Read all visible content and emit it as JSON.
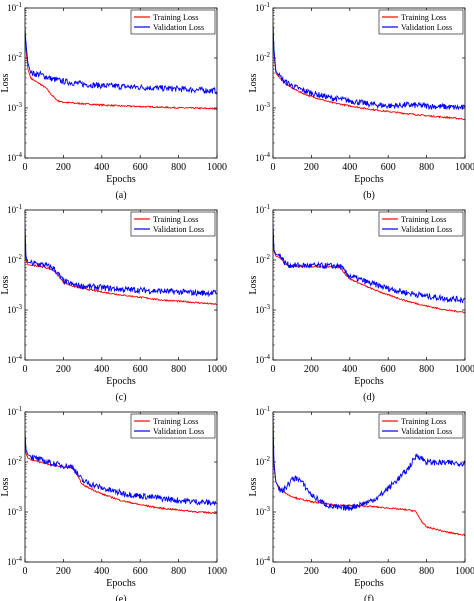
{
  "chart_data": [
    {
      "type": "line",
      "panel_label": "(a)",
      "xlabel": "Epochs",
      "ylabel": "Loss",
      "xlim": [
        0,
        1000
      ],
      "ylim": [
        0.0001,
        0.1
      ],
      "yscale": "log",
      "x_ticks": [
        "0",
        "200",
        "400",
        "600",
        "800",
        "1000"
      ],
      "y_ticks": [
        "10-4",
        "10-3",
        "10-2",
        "10-1"
      ],
      "legend": "top-right",
      "series": [
        {
          "name": "Training Loss",
          "color": "#ff0000",
          "x": [
            0,
            5,
            15,
            30,
            50,
            80,
            110,
            140,
            170,
            200,
            300,
            400,
            500,
            600,
            700,
            800,
            900,
            1000
          ],
          "y": [
            0.03,
            0.015,
            0.006,
            0.004,
            0.0035,
            0.003,
            0.0025,
            0.0018,
            0.0014,
            0.0013,
            0.00122,
            0.00115,
            0.0011,
            0.00107,
            0.00104,
            0.00101,
            0.00099,
            0.00097
          ]
        },
        {
          "name": "Validation Loss",
          "color": "#0000ff",
          "x": [
            0,
            5,
            15,
            30,
            50,
            80,
            110,
            140,
            170,
            200,
            300,
            400,
            500,
            600,
            700,
            800,
            900,
            1000
          ],
          "y": [
            0.04,
            0.02,
            0.008,
            0.005,
            0.0048,
            0.0047,
            0.0042,
            0.0038,
            0.0036,
            0.0034,
            0.003,
            0.0028,
            0.0027,
            0.0026,
            0.0025,
            0.0024,
            0.0023,
            0.0022
          ]
        }
      ]
    },
    {
      "type": "line",
      "panel_label": "(b)",
      "xlabel": "Epochs",
      "ylabel": "Loss",
      "xlim": [
        0,
        1000
      ],
      "ylim": [
        0.0001,
        0.1
      ],
      "yscale": "log",
      "x_ticks": [
        "0",
        "200",
        "400",
        "600",
        "800",
        "1000"
      ],
      "y_ticks": [
        "10-4",
        "10-3",
        "10-2",
        "10-1"
      ],
      "legend": "top-right",
      "series": [
        {
          "name": "Training Loss",
          "color": "#ff0000",
          "x": [
            0,
            5,
            15,
            30,
            60,
            100,
            150,
            200,
            300,
            400,
            500,
            600,
            700,
            800,
            900,
            1000
          ],
          "y": [
            0.03,
            0.012,
            0.005,
            0.0042,
            0.0032,
            0.0025,
            0.002,
            0.0017,
            0.0013,
            0.0011,
            0.00095,
            0.00085,
            0.00077,
            0.0007,
            0.00065,
            0.0006
          ]
        },
        {
          "name": "Validation Loss",
          "color": "#0000ff",
          "x": [
            0,
            5,
            15,
            30,
            60,
            100,
            150,
            200,
            300,
            400,
            500,
            600,
            700,
            800,
            900,
            1000
          ],
          "y": [
            0.05,
            0.015,
            0.0055,
            0.0045,
            0.0034,
            0.0028,
            0.0023,
            0.002,
            0.0016,
            0.0014,
            0.0012,
            0.0011,
            0.00115,
            0.0011,
            0.00105,
            0.001
          ]
        }
      ]
    },
    {
      "type": "line",
      "panel_label": "(c)",
      "xlabel": "Epochs",
      "ylabel": "Loss",
      "xlim": [
        0,
        1000
      ],
      "ylim": [
        0.0001,
        0.1
      ],
      "yscale": "log",
      "x_ticks": [
        "0",
        "200",
        "400",
        "600",
        "800",
        "1000"
      ],
      "y_ticks": [
        "10-4",
        "10-3",
        "10-2",
        "10-1"
      ],
      "legend": "top-right",
      "series": [
        {
          "name": "Training Loss",
          "color": "#ff0000",
          "x": [
            0,
            5,
            15,
            50,
            100,
            150,
            180,
            200,
            250,
            300,
            400,
            500,
            600,
            700,
            800,
            900,
            1000
          ],
          "y": [
            0.03,
            0.01,
            0.008,
            0.0078,
            0.0072,
            0.0062,
            0.0045,
            0.0036,
            0.003,
            0.0027,
            0.0023,
            0.002,
            0.0018,
            0.0016,
            0.0015,
            0.0014,
            0.0013
          ]
        },
        {
          "name": "Validation Loss",
          "color": "#0000ff",
          "x": [
            0,
            5,
            15,
            50,
            100,
            150,
            180,
            200,
            250,
            300,
            400,
            500,
            600,
            700,
            800,
            900,
            1000
          ],
          "y": [
            0.05,
            0.012,
            0.009,
            0.0085,
            0.008,
            0.0068,
            0.0048,
            0.0038,
            0.0032,
            0.003,
            0.0028,
            0.0026,
            0.0025,
            0.0024,
            0.0023,
            0.0022,
            0.0022
          ]
        }
      ]
    },
    {
      "type": "line",
      "panel_label": "(d)",
      "xlabel": "Epochs",
      "ylabel": "Loss",
      "xlim": [
        0,
        1000
      ],
      "ylim": [
        0.0001,
        0.1
      ],
      "yscale": "log",
      "x_ticks": [
        "0",
        "200",
        "400",
        "600",
        "800",
        "1000"
      ],
      "y_ticks": [
        "10-4",
        "10-3",
        "10-2",
        "10-1"
      ],
      "legend": "top-right",
      "series": [
        {
          "name": "Training Loss",
          "color": "#ff0000",
          "x": [
            0,
            5,
            15,
            40,
            60,
            80,
            100,
            200,
            300,
            350,
            380,
            400,
            500,
            600,
            700,
            800,
            900,
            1000
          ],
          "y": [
            0.04,
            0.015,
            0.012,
            0.011,
            0.0085,
            0.0078,
            0.0075,
            0.0074,
            0.0073,
            0.0072,
            0.005,
            0.0042,
            0.0028,
            0.002,
            0.0015,
            0.0012,
            0.001,
            0.0009
          ]
        },
        {
          "name": "Validation Loss",
          "color": "#0000ff",
          "x": [
            0,
            5,
            15,
            40,
            60,
            80,
            100,
            200,
            300,
            350,
            380,
            400,
            500,
            600,
            700,
            800,
            900,
            1000
          ],
          "y": [
            0.05,
            0.016,
            0.013,
            0.012,
            0.009,
            0.008,
            0.0078,
            0.0077,
            0.0076,
            0.0075,
            0.0055,
            0.0048,
            0.0035,
            0.0027,
            0.0022,
            0.0019,
            0.0017,
            0.0016
          ]
        }
      ]
    },
    {
      "type": "line",
      "panel_label": "(e)",
      "xlabel": "Epochs",
      "ylabel": "Loss",
      "xlim": [
        0,
        1000
      ],
      "ylim": [
        0.0001,
        0.1
      ],
      "yscale": "log",
      "x_ticks": [
        "0",
        "200",
        "400",
        "600",
        "800",
        "1000"
      ],
      "y_ticks": [
        "10-4",
        "10-3",
        "10-2",
        "10-1"
      ],
      "legend": "top-right",
      "series": [
        {
          "name": "Training Loss",
          "color": "#ff0000",
          "x": [
            0,
            5,
            15,
            50,
            100,
            150,
            200,
            230,
            250,
            270,
            300,
            400,
            500,
            600,
            700,
            800,
            900,
            1000
          ],
          "y": [
            0.03,
            0.015,
            0.012,
            0.0105,
            0.0095,
            0.0085,
            0.008,
            0.0078,
            0.0075,
            0.0055,
            0.0035,
            0.0023,
            0.0017,
            0.0014,
            0.0012,
            0.0011,
            0.001,
            0.00095
          ]
        },
        {
          "name": "Validation Loss",
          "color": "#0000ff",
          "x": [
            0,
            5,
            15,
            50,
            100,
            150,
            200,
            230,
            250,
            270,
            300,
            400,
            500,
            600,
            700,
            800,
            900,
            1000
          ],
          "y": [
            0.04,
            0.018,
            0.014,
            0.012,
            0.0105,
            0.0092,
            0.0085,
            0.0082,
            0.008,
            0.006,
            0.0042,
            0.003,
            0.0024,
            0.0021,
            0.0019,
            0.0017,
            0.0016,
            0.0015
          ]
        }
      ]
    },
    {
      "type": "line",
      "panel_label": "(f)",
      "xlabel": "Epochs",
      "ylabel": "Loss",
      "xlim": [
        0,
        1000
      ],
      "ylim": [
        0.0001,
        0.1
      ],
      "yscale": "log",
      "x_ticks": [
        "0",
        "200",
        "400",
        "600",
        "800",
        "1000"
      ],
      "y_ticks": [
        "10-4",
        "10-3",
        "10-2",
        "10-1"
      ],
      "legend": "top-right",
      "series": [
        {
          "name": "Training Loss",
          "color": "#ff0000",
          "x": [
            0,
            5,
            15,
            40,
            80,
            120,
            200,
            300,
            400,
            500,
            600,
            700,
            740,
            760,
            780,
            800,
            850,
            900,
            950,
            1000
          ],
          "y": [
            0.03,
            0.008,
            0.004,
            0.0028,
            0.0022,
            0.0019,
            0.0016,
            0.0014,
            0.00135,
            0.0013,
            0.0012,
            0.0011,
            0.00105,
            0.0008,
            0.0006,
            0.0005,
            0.00045,
            0.0004,
            0.00037,
            0.00035
          ]
        },
        {
          "name": "Validation Loss",
          "color": "#0000ff",
          "x": [
            0,
            5,
            15,
            40,
            70,
            100,
            130,
            160,
            200,
            250,
            300,
            350,
            400,
            450,
            500,
            550,
            600,
            650,
            700,
            750,
            800,
            850,
            900,
            950,
            1000
          ],
          "y": [
            0.08,
            0.01,
            0.004,
            0.0025,
            0.0032,
            0.0045,
            0.0048,
            0.0035,
            0.0022,
            0.0016,
            0.0013,
            0.0012,
            0.00122,
            0.0014,
            0.0016,
            0.002,
            0.003,
            0.0045,
            0.007,
            0.014,
            0.01,
            0.0098,
            0.0096,
            0.0095,
            0.0095
          ]
        }
      ]
    }
  ]
}
